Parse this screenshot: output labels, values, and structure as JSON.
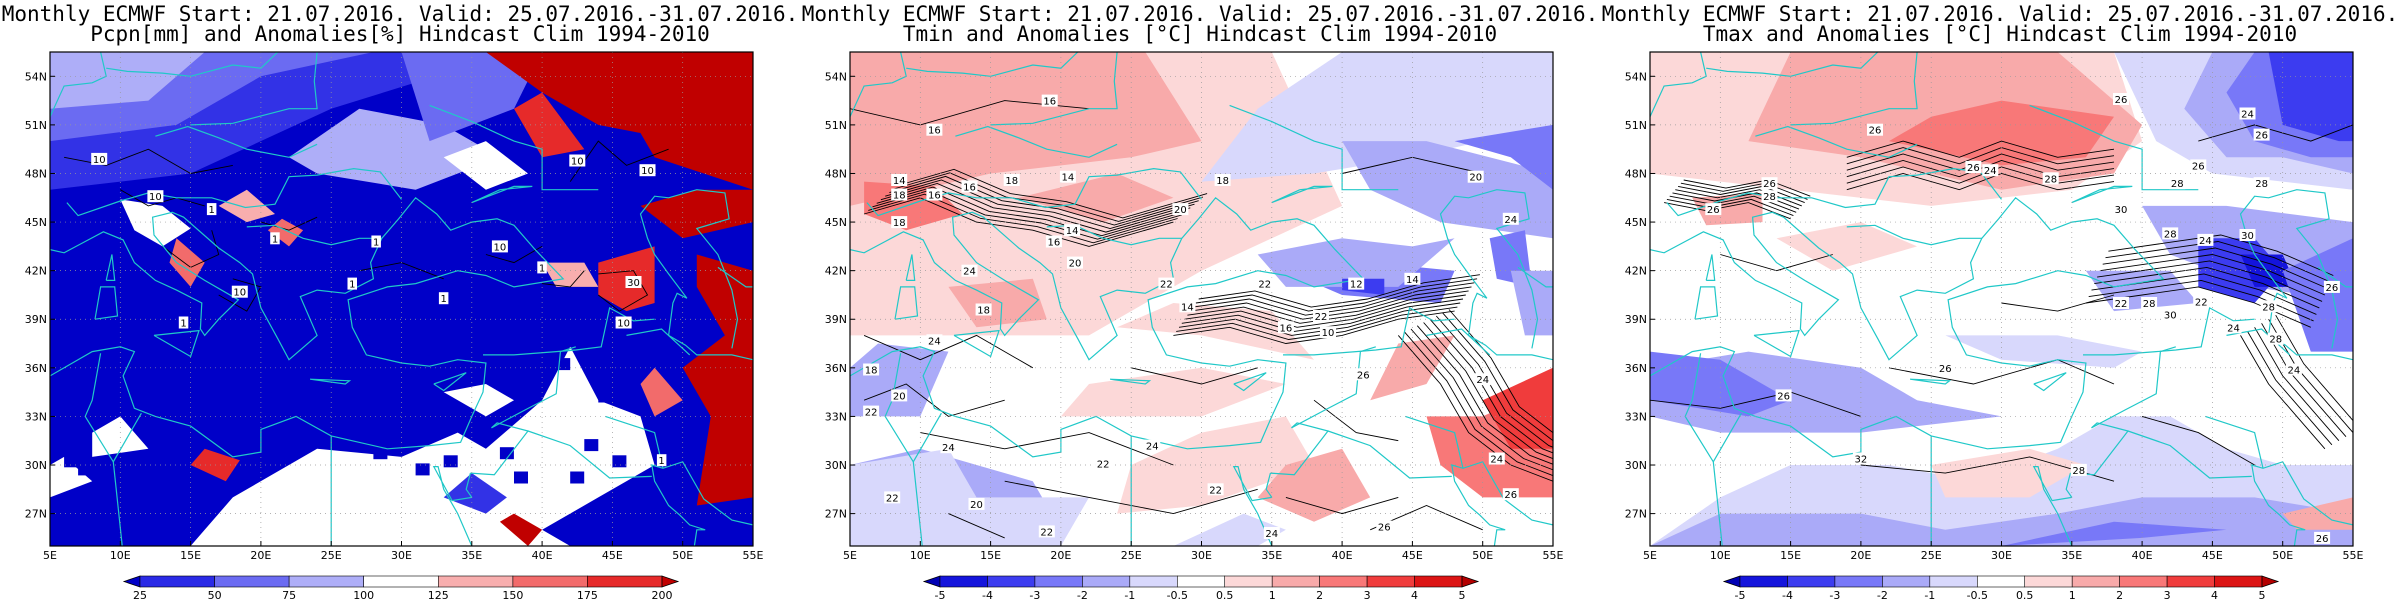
{
  "panels": [
    {
      "title_line1": "Monthly ECMWF Start: 21.07.2016. Valid: 25.07.2016.-31.07.2016.",
      "title_line2": "Pcpn[mm] and Anomalies[%] Hindcast Clim 1994-2010",
      "field": "precip",
      "colorbar": {
        "labels": [
          "25",
          "50",
          "75",
          "100",
          "125",
          "150",
          "175",
          "200"
        ],
        "colors": [
          "#0000c8",
          "#2a2ae6",
          "#6b6bf2",
          "#aeaef8",
          "#ffffff",
          "#f8aeae",
          "#f26b6b",
          "#e62a2a",
          "#c00000"
        ]
      },
      "contour_labels": [
        {
          "text": "10",
          "lon": 8.5,
          "lat": 48.9
        },
        {
          "text": "10",
          "lon": 12.5,
          "lat": 46.6
        },
        {
          "text": "10",
          "lon": 18.5,
          "lat": 40.7
        },
        {
          "text": "1",
          "lon": 16.5,
          "lat": 45.8
        },
        {
          "text": "1",
          "lon": 21,
          "lat": 44
        },
        {
          "text": "1",
          "lon": 28.2,
          "lat": 43.8
        },
        {
          "text": "1",
          "lon": 26.5,
          "lat": 41.2
        },
        {
          "text": "1",
          "lon": 33,
          "lat": 40.3
        },
        {
          "text": "1",
          "lon": 40,
          "lat": 42.2
        },
        {
          "text": "10",
          "lon": 42.5,
          "lat": 48.8
        },
        {
          "text": "10",
          "lon": 47.5,
          "lat": 48.2
        },
        {
          "text": "10",
          "lon": 37,
          "lat": 43.5
        },
        {
          "text": "30",
          "lon": 46.5,
          "lat": 41.3
        },
        {
          "text": "10",
          "lon": 45.8,
          "lat": 38.8
        },
        {
          "text": "1",
          "lon": 14.5,
          "lat": 38.8
        },
        {
          "text": "1",
          "lon": 48.5,
          "lat": 30.3
        }
      ]
    },
    {
      "title_line1": "Monthly ECMWF Start: 21.07.2016. Valid: 25.07.2016.-31.07.2016.",
      "title_line2": "Tmin and Anomalies [°C] Hindcast Clim 1994-2010",
      "field": "tmin",
      "colorbar": {
        "labels": [
          "-5",
          "-4",
          "-3",
          "-2",
          "-1",
          "-0.5",
          "0.5",
          "1",
          "2",
          "3",
          "4",
          "5"
        ],
        "colors": [
          "#0000b4",
          "#1414dc",
          "#3c3cf0",
          "#7878f8",
          "#aaaaf8",
          "#d8d8fc",
          "#ffffff",
          "#fcd8d8",
          "#f8aaaa",
          "#f87878",
          "#f03c3c",
          "#dc1414",
          "#b40000"
        ]
      },
      "contour_labels": [
        {
          "text": "16",
          "lon": 11,
          "lat": 50.7
        },
        {
          "text": "16",
          "lon": 19.2,
          "lat": 52.5
        },
        {
          "text": "18",
          "lon": 8.5,
          "lat": 46.7
        },
        {
          "text": "14",
          "lon": 8.5,
          "lat": 47.6
        },
        {
          "text": "16",
          "lon": 11,
          "lat": 46.7
        },
        {
          "text": "16",
          "lon": 13.5,
          "lat": 47.2
        },
        {
          "text": "18",
          "lon": 16.5,
          "lat": 47.6
        },
        {
          "text": "14",
          "lon": 20.5,
          "lat": 47.8
        },
        {
          "text": "18",
          "lon": 31.5,
          "lat": 47.6
        },
        {
          "text": "20",
          "lon": 49.5,
          "lat": 47.8
        },
        {
          "text": "20",
          "lon": 28.5,
          "lat": 45.8
        },
        {
          "text": "14",
          "lon": 20.8,
          "lat": 44.5
        },
        {
          "text": "16",
          "lon": 19.5,
          "lat": 43.8
        },
        {
          "text": "20",
          "lon": 21,
          "lat": 42.5
        },
        {
          "text": "24",
          "lon": 52,
          "lat": 45.2
        },
        {
          "text": "18",
          "lon": 8.5,
          "lat": 45
        },
        {
          "text": "24",
          "lon": 13.5,
          "lat": 42
        },
        {
          "text": "22",
          "lon": 27.5,
          "lat": 41.2
        },
        {
          "text": "22",
          "lon": 34.5,
          "lat": 41.2
        },
        {
          "text": "14",
          "lon": 29,
          "lat": 39.8
        },
        {
          "text": "12",
          "lon": 41,
          "lat": 41.2
        },
        {
          "text": "14",
          "lon": 45,
          "lat": 41.5
        },
        {
          "text": "22",
          "lon": 38.5,
          "lat": 39.2
        },
        {
          "text": "16",
          "lon": 36,
          "lat": 38.5
        },
        {
          "text": "10",
          "lon": 39,
          "lat": 38.2
        },
        {
          "text": "18",
          "lon": 14.5,
          "lat": 39.6
        },
        {
          "text": "24",
          "lon": 11,
          "lat": 37.7
        },
        {
          "text": "18",
          "lon": 6.5,
          "lat": 35.9
        },
        {
          "text": "20",
          "lon": 8.5,
          "lat": 34.3
        },
        {
          "text": "22",
          "lon": 6.5,
          "lat": 33.3
        },
        {
          "text": "24",
          "lon": 12,
          "lat": 31.1
        },
        {
          "text": "24",
          "lon": 26.5,
          "lat": 31.2
        },
        {
          "text": "22",
          "lon": 23,
          "lat": 30.1
        },
        {
          "text": "22",
          "lon": 31,
          "lat": 28.5
        },
        {
          "text": "20",
          "lon": 14,
          "lat": 27.6
        },
        {
          "text": "22",
          "lon": 8,
          "lat": 28
        },
        {
          "text": "22",
          "lon": 19,
          "lat": 25.9
        },
        {
          "text": "24",
          "lon": 35,
          "lat": 25.8
        },
        {
          "text": "26",
          "lon": 43,
          "lat": 26.2
        },
        {
          "text": "26",
          "lon": 41.5,
          "lat": 35.6
        },
        {
          "text": "24",
          "lon": 50,
          "lat": 35.3
        },
        {
          "text": "26",
          "lon": 52,
          "lat": 28.2
        },
        {
          "text": "24",
          "lon": 51,
          "lat": 30.4
        }
      ]
    },
    {
      "title_line1": "Monthly ECMWF Start: 21.07.2016. Valid: 25.07.2016.-31.07.2016.",
      "title_line2": "Tmax and Anomalies [°C] Hindcast Clim 1994-2010",
      "field": "tmax",
      "colorbar": {
        "labels": [
          "-5",
          "-4",
          "-3",
          "-2",
          "-1",
          "-0.5",
          "0.5",
          "1",
          "2",
          "3",
          "4",
          "5"
        ],
        "colors": [
          "#0000b4",
          "#1414dc",
          "#3c3cf0",
          "#7878f8",
          "#aaaaf8",
          "#d8d8fc",
          "#ffffff",
          "#fcd8d8",
          "#f8aaaa",
          "#f87878",
          "#f03c3c",
          "#dc1414",
          "#b40000"
        ]
      },
      "contour_labels": [
        {
          "text": "26",
          "lon": 38.5,
          "lat": 52.6
        },
        {
          "text": "24",
          "lon": 47.5,
          "lat": 51.7
        },
        {
          "text": "26",
          "lon": 21,
          "lat": 50.7
        },
        {
          "text": "26",
          "lon": 48.5,
          "lat": 50.4
        },
        {
          "text": "26",
          "lon": 44,
          "lat": 48.5
        },
        {
          "text": "26",
          "lon": 28,
          "lat": 48.4
        },
        {
          "text": "24",
          "lon": 29.2,
          "lat": 48.2
        },
        {
          "text": "28",
          "lon": 33.5,
          "lat": 47.7
        },
        {
          "text": "28",
          "lon": 42.5,
          "lat": 47.4
        },
        {
          "text": "28",
          "lon": 48.5,
          "lat": 47.4
        },
        {
          "text": "26",
          "lon": 13.5,
          "lat": 47.4
        },
        {
          "text": "28",
          "lon": 13.5,
          "lat": 46.6
        },
        {
          "text": "30",
          "lon": 38.5,
          "lat": 45.8
        },
        {
          "text": "26",
          "lon": 9.5,
          "lat": 45.8
        },
        {
          "text": "28",
          "lon": 42,
          "lat": 44.3
        },
        {
          "text": "24",
          "lon": 44.5,
          "lat": 43.9
        },
        {
          "text": "30",
          "lon": 47.5,
          "lat": 44.2
        },
        {
          "text": "26",
          "lon": 53.5,
          "lat": 41
        },
        {
          "text": "22",
          "lon": 38.5,
          "lat": 40
        },
        {
          "text": "28",
          "lon": 40.5,
          "lat": 40
        },
        {
          "text": "30",
          "lon": 42,
          "lat": 39.3
        },
        {
          "text": "22",
          "lon": 44.2,
          "lat": 40.1
        },
        {
          "text": "28",
          "lon": 49,
          "lat": 39.8
        },
        {
          "text": "24",
          "lon": 46.5,
          "lat": 38.5
        },
        {
          "text": "28",
          "lon": 49.5,
          "lat": 37.8
        },
        {
          "text": "24",
          "lon": 50.8,
          "lat": 35.9
        },
        {
          "text": "26",
          "lon": 14.5,
          "lat": 34.3
        },
        {
          "text": "26",
          "lon": 26,
          "lat": 36
        },
        {
          "text": "28",
          "lon": 35.5,
          "lat": 29.7
        },
        {
          "text": "32",
          "lon": 20,
          "lat": 30.4
        },
        {
          "text": "26",
          "lon": 52.8,
          "lat": 25.5
        }
      ]
    }
  ],
  "lon_ticks": [
    "5E",
    "10E",
    "15E",
    "20E",
    "25E",
    "30E",
    "35E",
    "40E",
    "45E",
    "50E",
    "55E"
  ],
  "lat_ticks": [
    "27N",
    "30N",
    "33N",
    "36N",
    "39N",
    "42N",
    "45N",
    "48N",
    "51N",
    "54N"
  ],
  "coast_color": "#20c8c8"
}
